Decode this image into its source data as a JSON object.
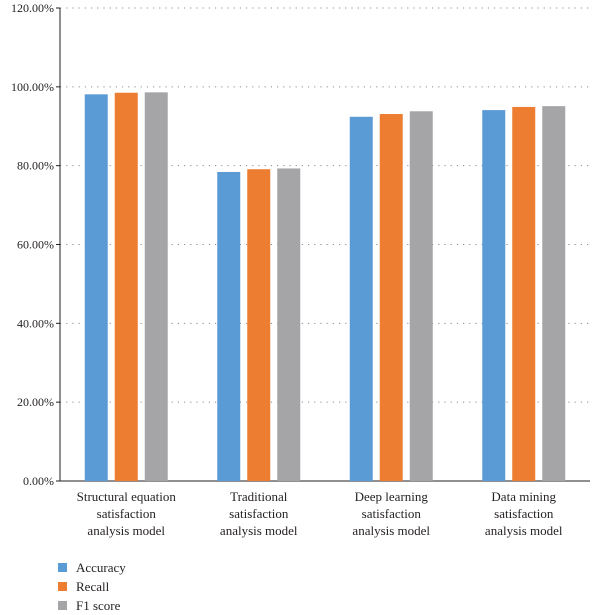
{
  "chart_data": {
    "type": "bar",
    "categories": [
      [
        "Structural equation",
        "satisfaction",
        "analysis model"
      ],
      [
        "Traditional",
        "satisfaction",
        "analysis model"
      ],
      [
        "Deep learning",
        "satisfaction",
        "analysis model"
      ],
      [
        "Data mining",
        "satisfaction",
        "analysis model"
      ]
    ],
    "series": [
      {
        "name": "Accuracy",
        "color": "#5b9bd5",
        "values": [
          98.1,
          78.4,
          92.4,
          94.1
        ]
      },
      {
        "name": "Recall",
        "color": "#ed7d31",
        "values": [
          98.5,
          79.1,
          93.1,
          94.9
        ]
      },
      {
        "name": "F1 score",
        "color": "#a5a5a7",
        "values": [
          98.6,
          79.3,
          93.8,
          95.1
        ]
      }
    ],
    "ylim": [
      0,
      120
    ],
    "yticks": [
      0,
      20,
      40,
      60,
      80,
      100,
      120
    ],
    "ytick_labels": [
      "0.00%",
      "20.00%",
      "40.00%",
      "60.00%",
      "80.00%",
      "100.00%",
      "120.00%"
    ],
    "grid": true,
    "legend_placement": "bottom-left",
    "title": "",
    "xlabel": "",
    "ylabel": ""
  }
}
